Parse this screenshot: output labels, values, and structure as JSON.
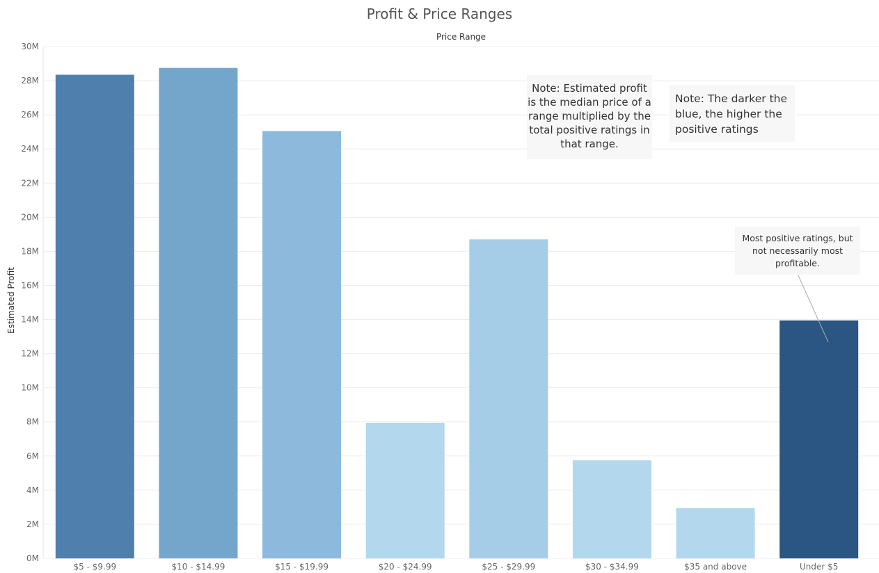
{
  "chart_data": {
    "type": "bar",
    "title": "Profit & Price Ranges",
    "x_header": "Price Range",
    "ylabel": "Estimated Profit",
    "categories": [
      "$5 - $9.99",
      "$10 - $14.99",
      "$15 - $19.99",
      "$20 - $24.99",
      "$25 - $29.99",
      "$30 - $34.99",
      "$35 and above",
      "Under $5"
    ],
    "values": [
      28350000,
      28750000,
      25050000,
      7950000,
      18700000,
      5750000,
      2950000,
      13950000
    ],
    "colors": [
      "#4e7fad",
      "#74a6cc",
      "#8dbadc",
      "#b3d8ed",
      "#a6cde8",
      "#b3d8ed",
      "#b3d8ed",
      "#2b5582"
    ],
    "ylim": [
      0,
      30000000
    ],
    "yticks": [
      0,
      2000000,
      4000000,
      6000000,
      8000000,
      10000000,
      12000000,
      14000000,
      16000000,
      18000000,
      20000000,
      22000000,
      24000000,
      26000000,
      28000000,
      30000000
    ],
    "ytick_labels": [
      "0M",
      "2M",
      "4M",
      "6M",
      "8M",
      "10M",
      "12M",
      "14M",
      "16M",
      "18M",
      "20M",
      "22M",
      "24M",
      "26M",
      "28M",
      "30M"
    ],
    "grid": true,
    "annotations": [
      {
        "text": "Note: Estimated profit is the median price of a range multiplied by the total positive ratings in that range."
      },
      {
        "text": "Note: The darker the blue, the higher the positive ratings"
      },
      {
        "text": "Most positive ratings, but not necessarily most profitable.",
        "target": "Under $5"
      }
    ]
  }
}
